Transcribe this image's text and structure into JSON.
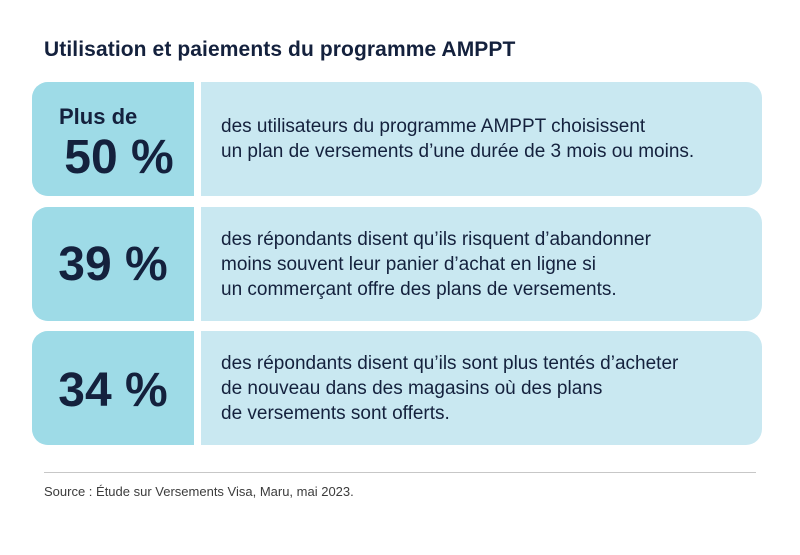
{
  "title": "Utilisation et paiements du programme AMPPT",
  "cards": [
    {
      "prefix": "Plus de",
      "stat": "50 %",
      "lines": [
        "des utilisateurs du programme AMPPT choisissent",
        "un plan de versements d’une durée de 3 mois ou moins."
      ]
    },
    {
      "stat": "39 %",
      "lines": [
        "des répondants disent qu’ils risquent d’abandonner",
        "moins souvent leur panier d’achat en ligne si",
        "un commerçant offre des plans de versements."
      ]
    },
    {
      "stat": "34 %",
      "lines": [
        "des répondants disent qu’ils sont plus tentés d’acheter",
        "de nouveau dans des magasins où des plans",
        "de versements sont offerts."
      ]
    }
  ],
  "source": "Source : Étude sur Versements Visa, Maru, mai 2023.",
  "colors": {
    "stat_background": "#9edbe7",
    "text_background": "#c9e8f1",
    "text": "#14213d"
  }
}
